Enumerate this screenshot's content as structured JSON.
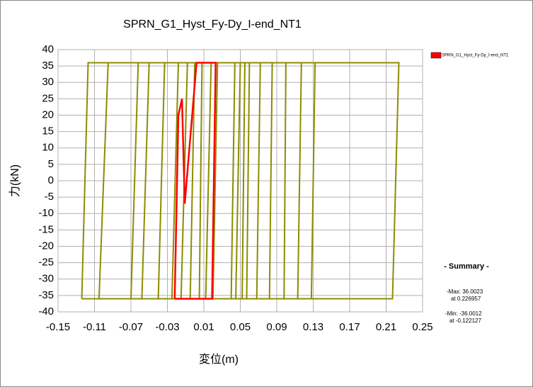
{
  "chart_data": {
    "type": "line",
    "title": "SPRN_G1_Hyst_Fy-Dy_I-end_NT1",
    "x_label": "変位(m)",
    "y_label": "力(kN)",
    "xlim": [
      -0.15,
      0.25
    ],
    "xticks": [
      -0.15,
      -0.11,
      -0.07,
      -0.03,
      0.01,
      0.05,
      0.09,
      0.13,
      0.17,
      0.21,
      0.25
    ],
    "ylim": [
      -40,
      40
    ],
    "yticks": [
      -40,
      -35,
      -30,
      -25,
      -20,
      -15,
      -10,
      -5,
      0,
      5,
      10,
      15,
      20,
      25,
      30,
      35,
      40
    ],
    "grid": true,
    "legend_position": "top-right",
    "series": [
      {
        "color": "#8c8c00",
        "x": [
          -0.124,
          -0.117,
          0.224,
          0.217,
          -0.124,
          -0.105,
          -0.095,
          0.132,
          0.128,
          -0.07,
          -0.062,
          0.117,
          0.113,
          -0.058,
          -0.05,
          0.1,
          0.098,
          -0.04,
          -0.033,
          0.085,
          0.082,
          -0.025,
          -0.018,
          0.072,
          0.068,
          -0.015,
          -0.008,
          0.06,
          0.057,
          -0.005,
          0.0,
          0.055,
          0.052,
          0.005,
          0.008,
          0.05,
          0.045,
          0.012,
          0.018,
          0.044,
          0.04,
          0.02,
          0.025
        ],
        "values": [
          -36,
          36,
          36,
          -36,
          -36,
          -36,
          36,
          36,
          -36,
          -36,
          36,
          36,
          -36,
          -36,
          36,
          36,
          -36,
          -36,
          36,
          36,
          -36,
          -36,
          36,
          36,
          -36,
          -36,
          36,
          36,
          -36,
          -36,
          36,
          36,
          -36,
          -36,
          36,
          36,
          -36,
          -36,
          36,
          36,
          -36,
          -36,
          36
        ]
      },
      {
        "name": "SPRN_G1_Hyst_Fy-Dy_I-end_NT1",
        "color": "#ff0000",
        "x": [
          -0.022,
          -0.018,
          -0.014,
          -0.011,
          0.002,
          0.023,
          0.019,
          -0.022
        ],
        "values": [
          -36,
          20,
          25,
          -7,
          36,
          36,
          -36,
          -36
        ]
      }
    ],
    "summary": {
      "title": "- Summary -",
      "lines": [
        "-Max: 36.0023",
        "at 0.226957",
        "-Min: -36.0012",
        "at -0.122127"
      ]
    }
  }
}
